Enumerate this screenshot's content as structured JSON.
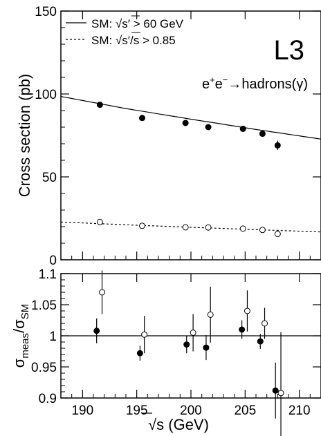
{
  "chart_data": [
    {
      "type": "scatter",
      "panel": "top",
      "experiment_label": "L3",
      "process_label": {
        "base": "e",
        "plus": "+",
        "minus": "−",
        "arrow": "→",
        "tail": "hadrons(γ)"
      },
      "ylabel": "Cross section (pb)",
      "xlim": [
        188,
        212
      ],
      "ylim": [
        0,
        150
      ],
      "yticks": [
        0,
        50,
        100,
        150
      ],
      "legend": [
        {
          "prefix": "SM: ",
          "sqrt": "s",
          "prime": "′",
          "suffix": "> 60 GeV",
          "style": "solid"
        },
        {
          "prefix": "SM: ",
          "sqrt": "s′/s",
          "prime": "",
          "suffix": "> 0.85",
          "style": "dashed"
        }
      ],
      "legend_position": "top-left",
      "series": [
        {
          "name": "SM: √s′ > 60 GeV",
          "marker": "filled",
          "x": [
            191.6,
            195.5,
            199.5,
            201.6,
            204.8,
            206.6,
            208.0
          ],
          "y": [
            93.5,
            85.5,
            82.5,
            80.0,
            79.0,
            76.0,
            69.0
          ],
          "err": [
            1.6,
            1.2,
            1.0,
            1.5,
            1.1,
            1.0,
            2.8
          ],
          "curve": {
            "x": [
              188,
              194,
              200,
              206,
              212
            ],
            "y": [
              98.5,
              91.2,
              84.8,
              78.6,
              72.8
            ],
            "style": "solid"
          }
        },
        {
          "name": "SM: √s′/s > 0.85",
          "marker": "open",
          "x": [
            191.6,
            195.5,
            199.5,
            201.6,
            204.8,
            206.6,
            208.0
          ],
          "y": [
            22.8,
            20.5,
            19.6,
            19.5,
            18.8,
            18.0,
            15.6
          ],
          "err": [
            0.7,
            0.6,
            0.5,
            0.8,
            0.6,
            0.5,
            1.5
          ],
          "curve": {
            "x": [
              188,
              194,
              200,
              206,
              212
            ],
            "y": [
              22.8,
              21.1,
              19.6,
              18.2,
              16.8
            ],
            "style": "dashed"
          }
        }
      ]
    },
    {
      "type": "scatter",
      "panel": "bottom",
      "ylabel": {
        "sigma": "σ",
        "sub_num": "meas",
        "slash": "/",
        "sub_den": "SM"
      },
      "xlabel": {
        "sqrt": "s",
        "suffix": " (GeV)"
      },
      "xlim": [
        188,
        212
      ],
      "ylim": [
        0.9,
        1.1
      ],
      "xticks": [
        190,
        195,
        200,
        205,
        210
      ],
      "yticks": [
        0.9,
        0.95,
        1,
        1.05,
        1.1
      ],
      "reference_line": 1,
      "series": [
        {
          "name": "SM: √s′ > 60 GeV",
          "marker": "filled",
          "x": [
            191.3,
            195.3,
            199.6,
            201.4,
            204.7,
            206.4,
            207.8
          ],
          "y": [
            1.008,
            0.972,
            0.986,
            0.981,
            1.01,
            0.991,
            0.912
          ],
          "err": [
            0.02,
            0.012,
            0.014,
            0.02,
            0.015,
            0.012,
            0.045
          ]
        },
        {
          "name": "SM: √s′/s > 0.85",
          "marker": "open",
          "x": [
            191.8,
            195.7,
            200.2,
            201.8,
            205.2,
            206.8,
            208.3
          ],
          "y": [
            1.07,
            1.002,
            1.005,
            1.034,
            1.04,
            1.02,
            0.908
          ],
          "err": [
            0.035,
            0.03,
            0.03,
            0.045,
            0.033,
            0.025,
            0.098
          ]
        }
      ]
    }
  ]
}
